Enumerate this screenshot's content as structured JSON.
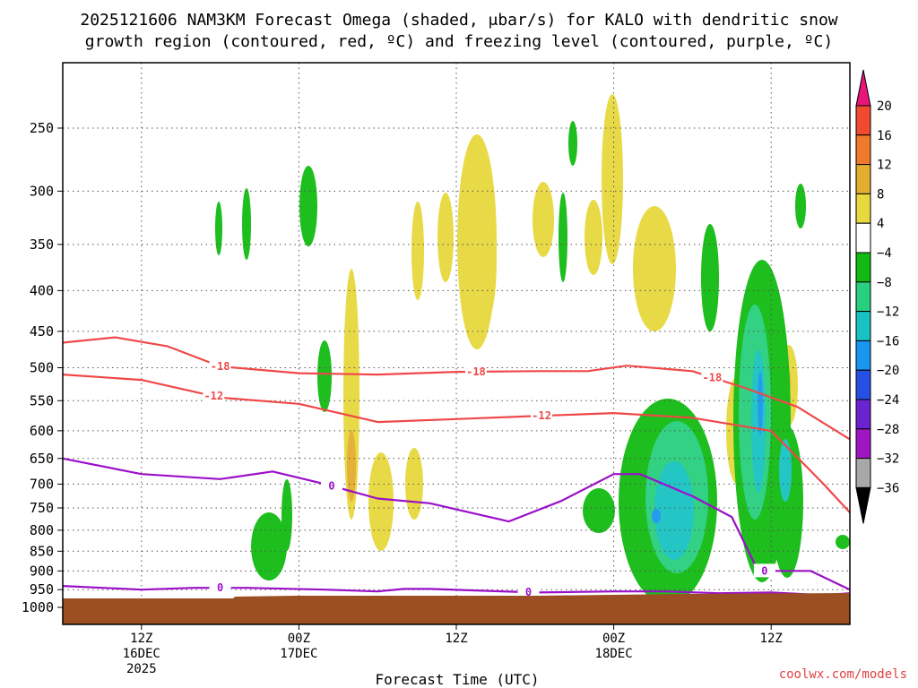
{
  "title": {
    "line1": "2025121606 NAM3KM Forecast Omega (shaded, μbar/s) for KALO with dendritic snow",
    "line2": "growth region (contoured, red, ºC) and freezing level (contoured, purple, ºC)"
  },
  "credit": "coolwx.com/models",
  "colors": {
    "dgz_contour": "#f04848",
    "freezing_contour": "#9a10c8",
    "ground": "#9c4f23",
    "grid": "#555555"
  },
  "chart_data": {
    "type": "heatmap",
    "title": "2025121606 NAM3KM Forecast Omega (shaded, μbar/s) for KALO with dendritic snow growth region (contoured, red, ºC) and freezing level (contoured, purple, ºC)",
    "xlabel": "Forecast Time (UTC)",
    "ylabel": "",
    "x_unit": "hours since 2025-12-16 06Z",
    "xlim": [
      0,
      60
    ],
    "ylim_hpa": [
      1000,
      200
    ],
    "y_axis": "pressure (hPa, log scale, inverted)",
    "x_ticks": [
      {
        "hour": 6,
        "lines": [
          "12Z",
          "16DEC",
          "2025"
        ]
      },
      {
        "hour": 18,
        "lines": [
          "00Z",
          "17DEC"
        ]
      },
      {
        "hour": 30,
        "lines": [
          "12Z"
        ]
      },
      {
        "hour": 42,
        "lines": [
          "00Z",
          "18DEC"
        ]
      },
      {
        "hour": 54,
        "lines": [
          "12Z"
        ]
      }
    ],
    "y_ticks": [
      250,
      300,
      350,
      400,
      450,
      500,
      550,
      600,
      650,
      700,
      750,
      800,
      850,
      900,
      950,
      1000
    ],
    "grid": true,
    "colorbar": {
      "labels": [
        "20",
        "16",
        "12",
        "8",
        "4",
        "−4",
        "−8",
        "−12",
        "−16",
        "−20",
        "−24",
        "−28",
        "−32",
        "−36"
      ],
      "colors": [
        "#e8157a",
        "#f24a30",
        "#ef7b2a",
        "#e3ad30",
        "#e7d93e",
        "#ffffff",
        "#11bb11",
        "#28cf7e",
        "#19c2c2",
        "#1a96f0",
        "#2550e3",
        "#6b22d0",
        "#9f17c2",
        "#a8a8a8",
        "#000000"
      ]
    },
    "series": [
      {
        "name": "-18",
        "color": "#f04848",
        "points": [
          [
            0,
            465
          ],
          [
            4,
            458
          ],
          [
            8,
            470
          ],
          [
            12,
            498
          ],
          [
            18,
            508
          ],
          [
            24,
            510
          ],
          [
            30,
            506
          ],
          [
            36,
            505
          ],
          [
            40,
            505
          ],
          [
            43,
            497
          ],
          [
            48,
            505
          ],
          [
            52,
            530
          ],
          [
            56,
            560
          ],
          [
            60,
            615
          ]
        ],
        "label_hours": [
          12,
          31.5,
          49.5
        ]
      },
      {
        "name": "-12",
        "color": "#f04848",
        "points": [
          [
            0,
            510
          ],
          [
            6,
            518
          ],
          [
            12,
            545
          ],
          [
            18,
            555
          ],
          [
            24,
            585
          ],
          [
            30,
            580
          ],
          [
            36,
            575
          ],
          [
            42,
            570
          ],
          [
            48,
            578
          ],
          [
            54,
            600
          ],
          [
            58,
            700
          ],
          [
            60,
            760
          ]
        ],
        "label_hours": [
          11.5,
          36.5
        ]
      },
      {
        "name": "0",
        "color": "#9a10c8",
        "points": [
          [
            0,
            650
          ],
          [
            6,
            680
          ],
          [
            12,
            690
          ],
          [
            16,
            675
          ],
          [
            20,
            700
          ],
          [
            24,
            730
          ],
          [
            28,
            740
          ],
          [
            34,
            780
          ],
          [
            38,
            735
          ],
          [
            42,
            680
          ],
          [
            44,
            680
          ],
          [
            48,
            725
          ],
          [
            51,
            770
          ],
          [
            53,
            900
          ],
          [
            57,
            900
          ],
          [
            60,
            950
          ]
        ],
        "label_hours": [
          20.5,
          53.5
        ]
      },
      {
        "name": "0",
        "color": "#9a10c8",
        "points": [
          [
            0,
            940
          ],
          [
            6,
            950
          ],
          [
            10,
            945
          ],
          [
            14,
            945
          ],
          [
            20,
            950
          ],
          [
            24,
            955
          ],
          [
            26,
            948
          ],
          [
            28,
            948
          ],
          [
            36,
            958
          ],
          [
            42,
            955
          ],
          [
            46,
            955
          ],
          [
            50,
            960
          ],
          [
            54,
            958
          ],
          [
            58,
            965
          ],
          [
            60,
            960
          ]
        ],
        "label_hours": [
          12,
          35.5
        ]
      }
    ]
  }
}
